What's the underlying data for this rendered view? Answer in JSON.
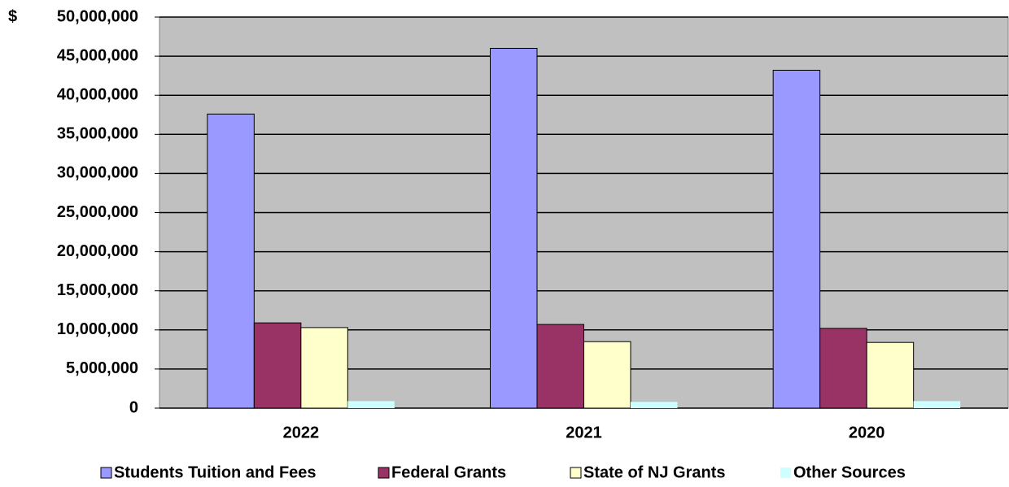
{
  "chart_data": {
    "type": "bar",
    "categories": [
      "2022",
      "2021",
      "2020"
    ],
    "series": [
      {
        "name": "Students Tuition and Fees",
        "color": "#9999ff",
        "values": [
          37600000,
          46000000,
          43200000
        ]
      },
      {
        "name": "Federal Grants",
        "color": "#993366",
        "values": [
          10900000,
          10700000,
          10200000
        ]
      },
      {
        "name": "State of NJ Grants",
        "color": "#ffffcc",
        "values": [
          10300000,
          8500000,
          8400000
        ]
      },
      {
        "name": "Other Sources",
        "color": "#ccffff",
        "values": [
          900000,
          800000,
          900000
        ]
      }
    ],
    "yunit": "$",
    "ylim": [
      0,
      50000000
    ],
    "yticks": [
      0,
      {
        "value": 5000000,
        "label": "5,000,000"
      },
      {
        "value": 10000000,
        "label": "10,000,000"
      },
      {
        "value": 15000000,
        "label": "15,000,000"
      },
      {
        "value": 20000000,
        "label": "20,000,000"
      },
      {
        "value": 25000000,
        "label": "25,000,000"
      },
      {
        "value": 30000000,
        "label": "30,000,000"
      },
      {
        "value": 35000000,
        "label": "35,000,000"
      },
      {
        "value": 40000000,
        "label": "40,000,000"
      },
      {
        "value": 45000000,
        "label": "45,000,000"
      },
      {
        "value": 50000000,
        "label": "50,000,000"
      }
    ],
    "grid": true,
    "plot_background": "#c0c0c0",
    "legend": "bottom"
  }
}
